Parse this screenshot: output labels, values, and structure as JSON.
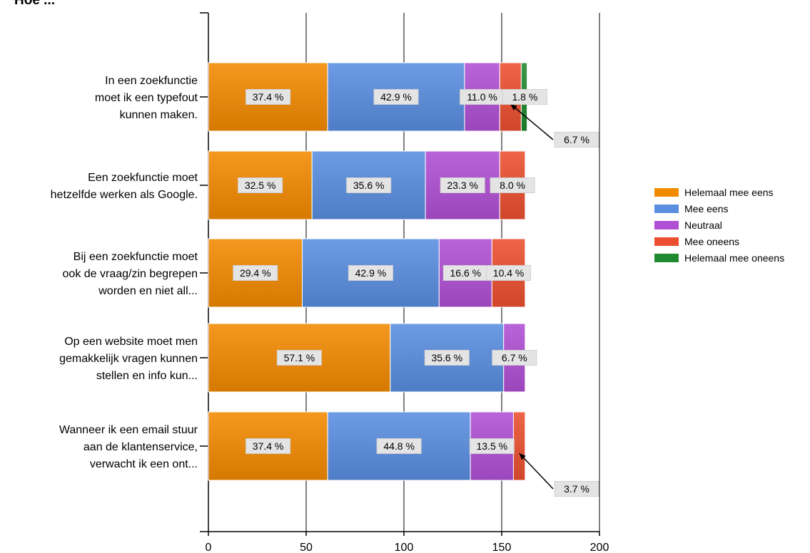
{
  "chart_data": {
    "type": "bar",
    "orientation": "horizontal",
    "stacked": true,
    "title": "Hoe ...",
    "categories": [
      [
        "In een zoekfunctie",
        "moet ik een typefout",
        "kunnen maken."
      ],
      [
        "Een zoekfunctie moet",
        "hetzelfde werken als Google."
      ],
      [
        "Bij een zoekfunctie moet",
        "ook de vraag/zin begrepen",
        "worden en niet all..."
      ],
      [
        "Op een website moet men",
        "gemakkelijk vragen kunnen",
        "stellen en info kun..."
      ],
      [
        "Wanneer ik een email stuur",
        "aan de klantenservice,",
        "verwacht ik een ont..."
      ]
    ],
    "xlim": [
      0,
      200
    ],
    "xticks": [
      "0",
      "50",
      "100",
      "150",
      "200"
    ],
    "grid": true,
    "legend_position": "right",
    "series": [
      {
        "name": "Helemaal mee eens",
        "color": "#f28a00",
        "values": [
          61,
          53,
          48,
          93,
          61
        ],
        "labels": [
          "37.4 %",
          "32.5 %",
          "29.4 %",
          "57.1 %",
          "37.4 %"
        ]
      },
      {
        "name": "Mee eens",
        "color": "#5a8ee0",
        "values": [
          70,
          58,
          70,
          58,
          73
        ],
        "labels": [
          "42.9 %",
          "35.6 %",
          "42.9 %",
          "35.6 %",
          "44.8 %"
        ]
      },
      {
        "name": "Neutraal",
        "color": "#b04fd4",
        "values": [
          18,
          38,
          27,
          11,
          22
        ],
        "labels": [
          "11.0 %",
          "23.3 %",
          "16.6 %",
          "6.7 %",
          "13.5 %"
        ]
      },
      {
        "name": "Mee oneens",
        "color": "#ec4f30",
        "values": [
          11,
          13,
          17,
          0,
          6
        ],
        "labels": [
          "6.7 %",
          "8.0 %",
          "10.4 %",
          "",
          "3.7 %"
        ]
      },
      {
        "name": "Helemaal mee oneens",
        "color": "#1f8a2f",
        "values": [
          3,
          0,
          0,
          0,
          0
        ],
        "labels": [
          "1.8 %",
          "",
          "",
          "",
          ""
        ]
      }
    ]
  }
}
